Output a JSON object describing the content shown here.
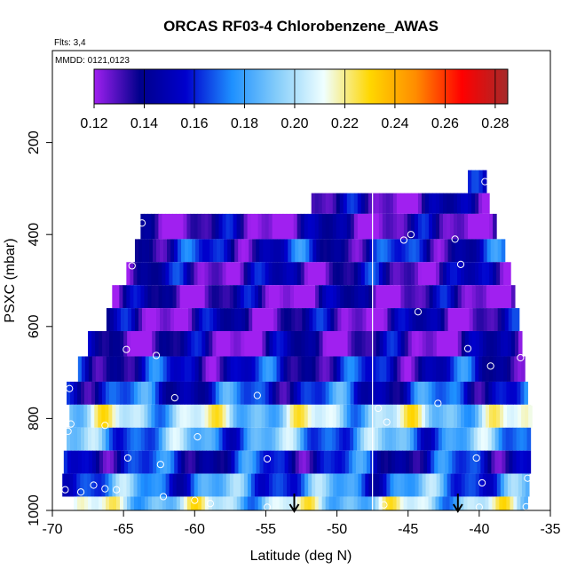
{
  "chart_data": {
    "type": "heatmap",
    "title": "ORCAS RF03-4 Chlorobenzene_AWAS",
    "flights_label": "Flts: 3,4",
    "date_label": "MMDD: 0121,0123",
    "xlabel": "Latitude (deg N)",
    "ylabel": "PSXC (mbar)",
    "xlim": [
      -70,
      -35
    ],
    "ylim": [
      1000,
      0
    ],
    "x_ticks": [
      -70,
      -65,
      -60,
      -55,
      -50,
      -45,
      -40,
      -35
    ],
    "x_tick_labels": [
      "-70",
      "-65",
      "-60",
      "-55",
      "-50",
      "-45",
      "-40",
      "-35"
    ],
    "y_ticks": [
      200,
      400,
      600,
      800,
      1000
    ],
    "y_tick_labels": [
      "200",
      "400",
      "600",
      "800",
      "1000"
    ],
    "colorbar": {
      "range": [
        0.12,
        0.285
      ],
      "ticks": [
        0.12,
        0.14,
        0.16,
        0.18,
        0.2,
        0.22,
        0.24,
        0.26,
        0.28
      ],
      "tick_labels": [
        "0.12",
        "0.14",
        "0.16",
        "0.18",
        "0.20",
        "0.22",
        "0.24",
        "0.26",
        "0.28"
      ],
      "colors": [
        "#a020f0",
        "#00008b",
        "#0000cd",
        "#1e90ff",
        "#87cefa",
        "#f0ffff",
        "#ffd700",
        "#ff8c00",
        "#ff0000",
        "#a52a2a"
      ]
    },
    "divider_latitude": -47.5,
    "arrows_latitude": [
      -53,
      -41.5
    ],
    "layers": [
      {
        "p1": 260,
        "p2": 310,
        "x1": -40.8,
        "x2": -39.5,
        "v": 0.135
      },
      {
        "p1": 310,
        "p2": 355,
        "x1": -51.8,
        "x2": -39.3,
        "v": 0.133
      },
      {
        "p1": 355,
        "p2": 410,
        "x1": -63.8,
        "x2": -38.8,
        "v": 0.132
      },
      {
        "p1": 410,
        "p2": 460,
        "x1": -64.2,
        "x2": -38.2,
        "v": 0.15
      },
      {
        "p1": 460,
        "p2": 510,
        "x1": -64.8,
        "x2": -37.8,
        "v": 0.138
      },
      {
        "p1": 510,
        "p2": 560,
        "x1": -65.8,
        "x2": -37.5,
        "v": 0.132
      },
      {
        "p1": 560,
        "p2": 610,
        "x1": -66.2,
        "x2": -37.2,
        "v": 0.135
      },
      {
        "p1": 610,
        "p2": 665,
        "x1": -67.5,
        "x2": -37.0,
        "v": 0.133
      },
      {
        "p1": 665,
        "p2": 720,
        "x1": -68.2,
        "x2": -36.8,
        "v": 0.15
      },
      {
        "p1": 720,
        "p2": 770,
        "x1": -69.0,
        "x2": -36.6,
        "v": 0.16
      },
      {
        "p1": 770,
        "p2": 820,
        "x1": -68.8,
        "x2": -36.3,
        "v": 0.2
      },
      {
        "p1": 820,
        "p2": 870,
        "x1": -69.0,
        "x2": -36.4,
        "v": 0.18
      },
      {
        "p1": 870,
        "p2": 920,
        "x1": -69.2,
        "x2": -36.4,
        "v": 0.155
      },
      {
        "p1": 920,
        "p2": 970,
        "x1": -69.3,
        "x2": -36.5,
        "v": 0.175
      },
      {
        "p1": 970,
        "p2": 1000,
        "x1": -68.5,
        "x2": -36.6,
        "v": 0.2
      }
    ],
    "points": [
      {
        "lat": -39.6,
        "p": 285
      },
      {
        "lat": -63.7,
        "p": 375
      },
      {
        "lat": -44.8,
        "p": 400
      },
      {
        "lat": -45.3,
        "p": 412
      },
      {
        "lat": -41.7,
        "p": 410
      },
      {
        "lat": -64.4,
        "p": 468
      },
      {
        "lat": -41.3,
        "p": 465
      },
      {
        "lat": -44.3,
        "p": 568
      },
      {
        "lat": -64.8,
        "p": 650
      },
      {
        "lat": -40.8,
        "p": 648
      },
      {
        "lat": -62.7,
        "p": 663
      },
      {
        "lat": -37.1,
        "p": 668
      },
      {
        "lat": -39.2,
        "p": 686
      },
      {
        "lat": -68.8,
        "p": 735
      },
      {
        "lat": -61.4,
        "p": 755
      },
      {
        "lat": -55.6,
        "p": 750
      },
      {
        "lat": -42.9,
        "p": 767
      },
      {
        "lat": -36.2,
        "p": 765
      },
      {
        "lat": -47.1,
        "p": 778
      },
      {
        "lat": -46.5,
        "p": 808
      },
      {
        "lat": -68.7,
        "p": 812
      },
      {
        "lat": -66.3,
        "p": 815
      },
      {
        "lat": -68.9,
        "p": 828
      },
      {
        "lat": -59.8,
        "p": 840
      },
      {
        "lat": -64.7,
        "p": 886
      },
      {
        "lat": -62.4,
        "p": 900
      },
      {
        "lat": -54.9,
        "p": 888
      },
      {
        "lat": -40.2,
        "p": 886
      },
      {
        "lat": -39.8,
        "p": 940
      },
      {
        "lat": -69.1,
        "p": 955
      },
      {
        "lat": -68.0,
        "p": 960
      },
      {
        "lat": -67.1,
        "p": 945
      },
      {
        "lat": -66.3,
        "p": 953
      },
      {
        "lat": -65.5,
        "p": 955
      },
      {
        "lat": -62.2,
        "p": 970
      },
      {
        "lat": -60.0,
        "p": 978
      },
      {
        "lat": -58.9,
        "p": 985
      },
      {
        "lat": -54.9,
        "p": 993
      },
      {
        "lat": -46.7,
        "p": 988
      },
      {
        "lat": -40.0,
        "p": 993
      },
      {
        "lat": -36.7,
        "p": 992
      },
      {
        "lat": -36.6,
        "p": 930
      }
    ]
  }
}
